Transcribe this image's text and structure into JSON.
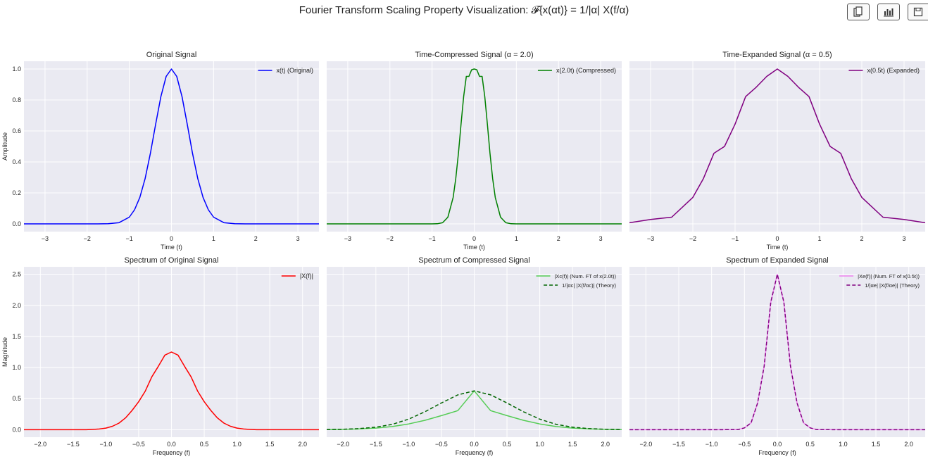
{
  "figure": {
    "title": "Fourier Transform Scaling Property Visualization: 𝓕{x(αt)} = 1/|α| X(f/α)"
  },
  "toolbar": [
    {
      "name": "copy-icon"
    },
    {
      "name": "bar-chart-icon"
    },
    {
      "name": "save-icon"
    }
  ],
  "colors": {
    "axes_bg": "#eaeaf2",
    "grid": "#ffffff",
    "blue": "#0000ff",
    "green": "#008000",
    "purple": "#800080",
    "red": "#ff0000",
    "lightgreen": "#55cc55",
    "violet": "#ee82ee"
  },
  "chart_data": [
    {
      "type": "line",
      "title": "Original Signal",
      "xlabel": "Time (t)",
      "ylabel": "Amplitude",
      "xlim": [
        -3.5,
        3.5
      ],
      "ylim": [
        -0.05,
        1.05
      ],
      "xticks": [
        -3,
        -2,
        -1,
        0,
        1,
        2,
        3
      ],
      "yticks": [
        0.0,
        0.2,
        0.4,
        0.6,
        0.8,
        1.0
      ],
      "ytick_labels": [
        "0.0",
        "0.2",
        "0.4",
        "0.6",
        "0.8",
        "1.0"
      ],
      "legend": "top-right",
      "series": [
        {
          "name": "x(t) (Original)",
          "color": "#0000ff",
          "dash": false,
          "x": [
            -3.5,
            -3,
            -2.5,
            -2,
            -1.75,
            -1.5,
            -1.25,
            -1,
            -0.875,
            -0.75,
            -0.625,
            -0.5,
            -0.375,
            -0.25,
            -0.125,
            0,
            0.125,
            0.25,
            0.375,
            0.5,
            0.625,
            0.75,
            0.875,
            1,
            1.25,
            1.5,
            1.75,
            2,
            2.5,
            3,
            3.5
          ],
          "y": [
            0,
            0,
            0,
            0,
            0.0002,
            0.0008,
            0.0073,
            0.0432,
            0.0907,
            0.1709,
            0.2921,
            0.4559,
            0.6443,
            0.8217,
            0.9521,
            1,
            0.9521,
            0.8217,
            0.6443,
            0.4559,
            0.2921,
            0.1709,
            0.0907,
            0.0432,
            0.0073,
            0.0008,
            0.0002,
            0,
            0,
            0,
            0
          ]
        }
      ]
    },
    {
      "type": "line",
      "title": "Time-Compressed Signal (α = 2.0)",
      "xlabel": "Time (t)",
      "ylabel": "",
      "xlim": [
        -3.5,
        3.5
      ],
      "ylim": [
        -0.05,
        1.05
      ],
      "xticks": [
        -3,
        -2,
        -1,
        0,
        1,
        2,
        3
      ],
      "yticks": [
        0.0,
        0.2,
        0.4,
        0.6,
        0.8,
        1.0
      ],
      "ytick_labels": [],
      "legend": "top-right",
      "series": [
        {
          "name": "x(2.0t) (Compressed)",
          "color": "#008000",
          "dash": false,
          "x": [
            -3.5,
            -2,
            -1,
            -0.875,
            -0.75,
            -0.625,
            -0.5,
            -0.4375,
            -0.375,
            -0.3125,
            -0.25,
            -0.1875,
            -0.125,
            -0.0625,
            0,
            0.0625,
            0.125,
            0.1875,
            0.25,
            0.3125,
            0.375,
            0.4375,
            0.5,
            0.625,
            0.75,
            0.875,
            1,
            2,
            3.5
          ],
          "y": [
            0,
            0,
            0.0002,
            0.0008,
            0.0073,
            0.0432,
            0.1709,
            0.2921,
            0.4559,
            0.6443,
            0.8217,
            0.9521,
            0.9521,
            0.9949,
            1,
            0.9949,
            0.9521,
            0.9521,
            0.8217,
            0.6443,
            0.4559,
            0.2921,
            0.1709,
            0.0432,
            0.0073,
            0.0008,
            0.0002,
            0,
            0
          ]
        }
      ]
    },
    {
      "type": "line",
      "title": "Time-Expanded Signal (α = 0.5)",
      "xlabel": "Time (t)",
      "ylabel": "",
      "xlim": [
        -3.5,
        3.5
      ],
      "ylim": [
        -0.05,
        1.05
      ],
      "xticks": [
        -3,
        -2,
        -1,
        0,
        1,
        2,
        3
      ],
      "yticks": [
        0.0,
        0.2,
        0.4,
        0.6,
        0.8,
        1.0
      ],
      "ytick_labels": [],
      "legend": "top-right",
      "series": [
        {
          "name": "x(0.5t) (Expanded)",
          "color": "#800080",
          "dash": false,
          "x": [
            -3.5,
            -3,
            -2.5,
            -2,
            -1.75,
            -1.5,
            -1.25,
            -1,
            -0.75,
            -0.5,
            -0.25,
            0,
            0.25,
            0.5,
            0.75,
            1,
            1.25,
            1.5,
            1.75,
            2,
            2.5,
            3,
            3.5
          ],
          "y": [
            0.0073,
            0.0282,
            0.0432,
            0.1709,
            0.2921,
            0.4559,
            0.5,
            0.6443,
            0.8217,
            0.8825,
            0.9521,
            1,
            0.9521,
            0.8825,
            0.8217,
            0.6443,
            0.5,
            0.4559,
            0.2921,
            0.1709,
            0.0432,
            0.0282,
            0.0073
          ]
        }
      ]
    },
    {
      "type": "line",
      "title": "Spectrum of Original Signal",
      "xlabel": "Frequency (f)",
      "ylabel": "Magnitude",
      "xlim": [
        -2.25,
        2.25
      ],
      "ylim": [
        -0.12,
        2.62
      ],
      "xticks": [
        -2,
        -1.5,
        -1,
        -0.5,
        0,
        0.5,
        1,
        1.5,
        2
      ],
      "xtick_labels": [
        "−2.0",
        "−1.5",
        "−1.0",
        "−0.5",
        "0.0",
        "0.5",
        "1.0",
        "1.5",
        "2.0"
      ],
      "yticks": [
        0,
        0.5,
        1,
        1.5,
        2,
        2.5
      ],
      "ytick_labels": [
        "0.0",
        "0.5",
        "1.0",
        "1.5",
        "2.0",
        "2.5"
      ],
      "legend": "top-right",
      "series": [
        {
          "name": "|X(f)|",
          "color": "#ff0000",
          "dash": false,
          "x": [
            -2.25,
            -1.3,
            -1.2,
            -1.1,
            -1,
            -0.9,
            -0.8,
            -0.7,
            -0.6,
            -0.5,
            -0.4,
            -0.3,
            -0.2,
            -0.1,
            0,
            0.1,
            0.2,
            0.3,
            0.4,
            0.5,
            0.6,
            0.7,
            0.8,
            0.9,
            1,
            1.1,
            1.2,
            1.3,
            2.25
          ],
          "y": [
            0,
            0,
            0.004,
            0.011,
            0.026,
            0.055,
            0.107,
            0.19,
            0.31,
            0.45,
            0.62,
            0.85,
            1.02,
            1.2,
            1.25,
            1.2,
            1.02,
            0.85,
            0.62,
            0.45,
            0.31,
            0.19,
            0.107,
            0.055,
            0.026,
            0.011,
            0.004,
            0,
            0
          ]
        }
      ]
    },
    {
      "type": "line",
      "title": "Spectrum of Compressed Signal",
      "xlabel": "Frequency (f)",
      "ylabel": "",
      "xlim": [
        -2.25,
        2.25
      ],
      "ylim": [
        -0.12,
        2.62
      ],
      "xticks": [
        -2,
        -1.5,
        -1,
        -0.5,
        0,
        0.5,
        1,
        1.5,
        2
      ],
      "xtick_labels": [
        "−2.0",
        "−1.5",
        "−1.0",
        "−0.5",
        "0.0",
        "0.5",
        "1.0",
        "1.5",
        "2.0"
      ],
      "yticks": [
        0,
        0.5,
        1,
        1.5,
        2,
        2.5
      ],
      "ytick_labels": [],
      "legend": "top-right",
      "series": [
        {
          "name": "|Xc(f)| (Num. FT of x(2.0t))",
          "color": "#55cc55",
          "dash": false,
          "x": [
            -2.25,
            -2,
            -1.75,
            -1.5,
            -1.25,
            -1,
            -0.75,
            -0.5,
            -0.25,
            0,
            0.25,
            0.5,
            0.75,
            1,
            1.25,
            1.5,
            1.75,
            2,
            2.25
          ],
          "y": [
            0.0022,
            0.0054,
            0.0125,
            0.0265,
            0.0515,
            0.0925,
            0.1515,
            0.2266,
            0.3069,
            0.625,
            0.3069,
            0.2266,
            0.1515,
            0.0925,
            0.0515,
            0.0265,
            0.0125,
            0.0054,
            0.0022
          ]
        },
        {
          "name": "1/|αc| |X(f/αc)| (Theory)",
          "color": "#006400",
          "dash": true,
          "x": [
            -2.25,
            -2,
            -1.75,
            -1.5,
            -1.25,
            -1,
            -0.75,
            -0.5,
            -0.25,
            0,
            0.25,
            0.5,
            0.75,
            1,
            1.25,
            1.5,
            1.75,
            2,
            2.25
          ],
          "y": [
            0.003,
            0.007,
            0.018,
            0.041,
            0.086,
            0.17,
            0.29,
            0.43,
            0.56,
            0.625,
            0.56,
            0.43,
            0.29,
            0.17,
            0.086,
            0.041,
            0.018,
            0.007,
            0.003
          ]
        }
      ]
    },
    {
      "type": "line",
      "title": "Spectrum of Expanded Signal",
      "xlabel": "Frequency (f)",
      "ylabel": "",
      "xlim": [
        -2.25,
        2.25
      ],
      "ylim": [
        -0.12,
        2.62
      ],
      "xticks": [
        -2,
        -1.5,
        -1,
        -0.5,
        0,
        0.5,
        1,
        1.5,
        2
      ],
      "xtick_labels": [
        "−2.0",
        "−1.5",
        "−1.0",
        "−0.5",
        "0.0",
        "0.5",
        "1.0",
        "1.5",
        "2.0"
      ],
      "yticks": [
        0,
        0.5,
        1,
        1.5,
        2,
        2.5
      ],
      "ytick_labels": [],
      "legend": "top-right",
      "series": [
        {
          "name": "|Xe(f)| (Num. FT of x(0.5t))",
          "color": "#ee82ee",
          "dash": false,
          "x": [
            -2.25,
            -0.6,
            -0.5,
            -0.4,
            -0.3,
            -0.2,
            -0.1,
            0,
            0.1,
            0.2,
            0.3,
            0.4,
            0.5,
            0.6,
            2.25
          ],
          "y": [
            0,
            0.001,
            0.03,
            0.11,
            0.43,
            1.02,
            2.05,
            2.5,
            2.05,
            1.02,
            0.43,
            0.11,
            0.03,
            0.001,
            0
          ]
        },
        {
          "name": "1/|αe| |X(f/αe)| (Theory)",
          "color": "#800080",
          "dash": true,
          "x": [
            -2.25,
            -0.6,
            -0.5,
            -0.4,
            -0.3,
            -0.2,
            -0.1,
            0,
            0.1,
            0.2,
            0.3,
            0.4,
            0.5,
            0.6,
            2.25
          ],
          "y": [
            0,
            0.001,
            0.03,
            0.11,
            0.43,
            1.02,
            2.05,
            2.5,
            2.05,
            1.02,
            0.43,
            0.11,
            0.03,
            0.001,
            0
          ]
        }
      ]
    }
  ]
}
